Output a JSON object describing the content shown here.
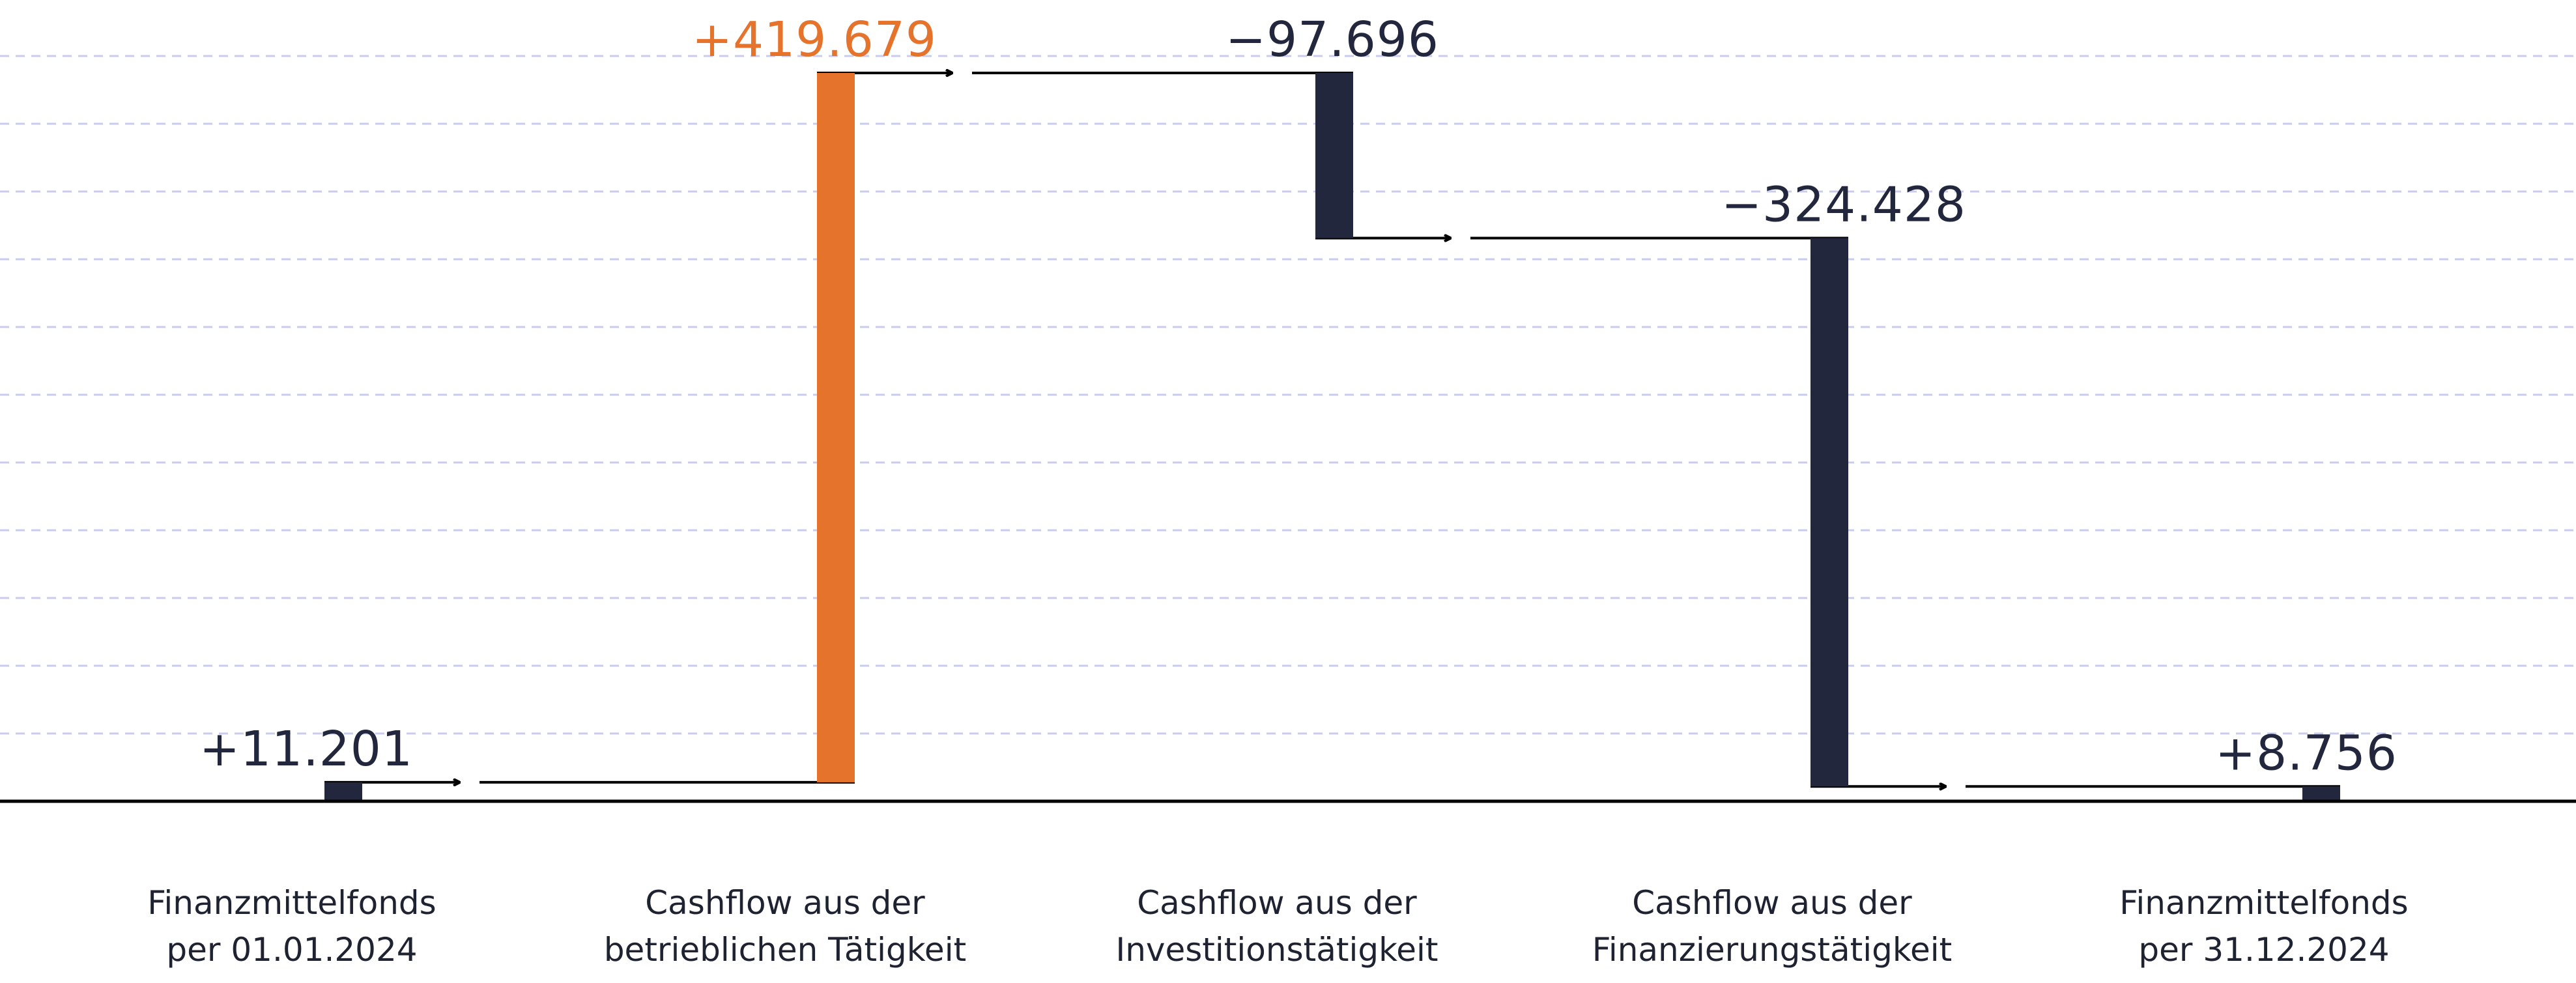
{
  "chart_data": {
    "type": "bar",
    "subtype": "waterfall",
    "categories": [
      [
        "Finanzmittelfonds",
        "per 01.01.2024"
      ],
      [
        "Cashflow aus der",
        "betrieblichen Tätigkeit"
      ],
      [
        "Cashflow aus der",
        "Investitionstätigkeit"
      ],
      [
        "Cashflow aus der",
        "Finanzierungstätigkeit"
      ],
      [
        "Finanzmittelfonds",
        "per 31.12.2024"
      ]
    ],
    "values": [
      11201,
      419679,
      -97696,
      -324428,
      8756
    ],
    "value_labels": [
      "+11.201",
      "+419.679",
      "−97.696",
      "−324.428",
      "+8.756"
    ],
    "bar_kinds": [
      "total",
      "delta",
      "delta",
      "delta",
      "total"
    ],
    "ylim": [
      0,
      440000
    ],
    "grid": true,
    "legend": "none",
    "title": "",
    "xlabel": "",
    "ylabel": "",
    "colors": {
      "positive_highlight": "#E5732C",
      "default_bar": "#23273D",
      "label_text": "#23273D",
      "gridline": "#C9CBEF",
      "axis": "#000000"
    }
  }
}
